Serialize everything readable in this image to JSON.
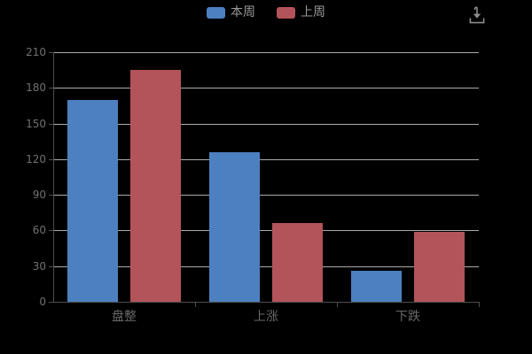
{
  "legend": {
    "items": [
      {
        "label": "本周",
        "color": "#4d80c0"
      },
      {
        "label": "上周",
        "color": "#b25459"
      }
    ]
  },
  "toolbox": {
    "icon": "download-icon",
    "icon_color": "#8c8c8c"
  },
  "chart_data": {
    "type": "bar",
    "title": "",
    "xlabel": "",
    "ylabel": "",
    "categories": [
      "盘整",
      "上涨",
      "下跌"
    ],
    "series": [
      {
        "name": "本周",
        "color": "#4d80c0",
        "values": [
          170,
          126,
          26
        ]
      },
      {
        "name": "上周",
        "color": "#b25459",
        "values": [
          195,
          66,
          59
        ]
      }
    ],
    "ylim": [
      0,
      210
    ],
    "yticks": [
      0,
      30,
      60,
      90,
      120,
      150,
      180,
      210
    ],
    "grid": true,
    "legend_position": "top-center",
    "colors": {
      "background": "#000000",
      "grid_line": "#c9c9c9",
      "axis_line": "#4d4d4d",
      "y_label": "#717171",
      "x_label": "#696969",
      "legend_text": "#999999"
    }
  }
}
